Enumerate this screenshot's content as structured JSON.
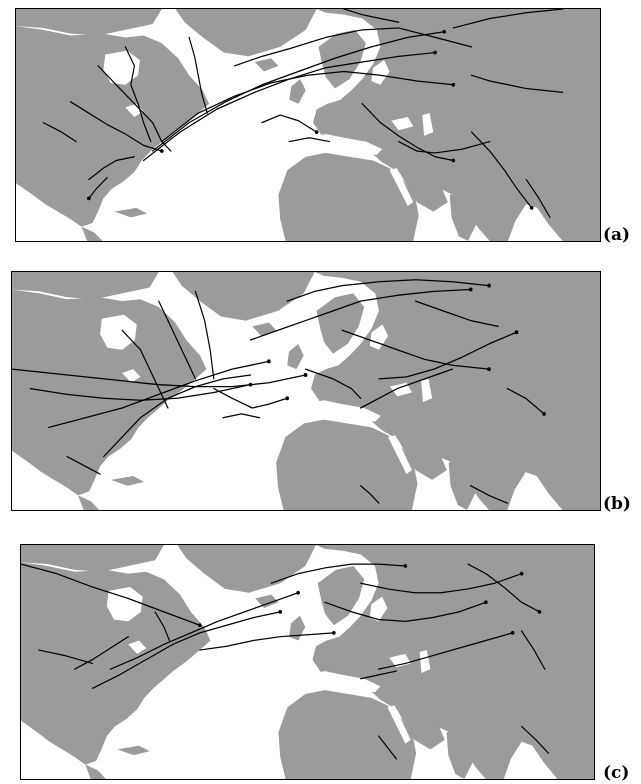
{
  "figure": {
    "panels": [
      {
        "id": "a",
        "label": "(a)"
      },
      {
        "id": "b",
        "label": "(b)"
      },
      {
        "id": "c",
        "label": "(c)"
      }
    ],
    "colors": {
      "land": "#9b9b9b",
      "ocean": "#ffffff",
      "tracks": "#000000"
    }
  }
}
